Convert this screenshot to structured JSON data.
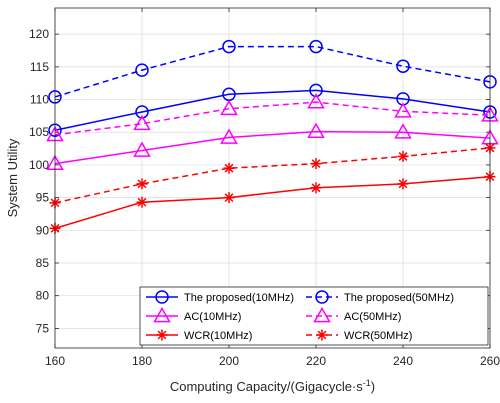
{
  "chart_data": {
    "type": "line",
    "title": "",
    "xlabel": "Computing Capacity/(Gigacycle·s",
    "xlabel_superscript": "-1",
    "xlabel_suffix": ")",
    "ylabel": "System Utility",
    "x": [
      160,
      180,
      200,
      220,
      240,
      260
    ],
    "xlim": [
      160,
      260
    ],
    "ylim": [
      72,
      124
    ],
    "xticks": [
      160,
      180,
      200,
      220,
      240,
      260
    ],
    "yticks": [
      75,
      80,
      85,
      90,
      95,
      100,
      105,
      110,
      115,
      120
    ],
    "grid": true,
    "legend_position": "bottom-right",
    "series": [
      {
        "name": "The proposed(10MHz)",
        "values": [
          105.3,
          108.1,
          110.8,
          111.4,
          110.1,
          108.1
        ],
        "color": "#0000ff",
        "dash": "solid",
        "marker": "circle"
      },
      {
        "name": "The proposed(50MHz)",
        "values": [
          110.4,
          114.5,
          118.1,
          118.1,
          115.1,
          112.7
        ],
        "color": "#0000ff",
        "dash": "dashed",
        "marker": "circle"
      },
      {
        "name": "AC(10MHz)",
        "values": [
          100.2,
          102.2,
          104.2,
          105.1,
          105.0,
          104.1
        ],
        "color": "#ff00ff",
        "dash": "solid",
        "marker": "triangle"
      },
      {
        "name": "AC(50MHz)",
        "values": [
          104.6,
          106.3,
          108.6,
          109.6,
          108.2,
          107.6
        ],
        "color": "#ff00ff",
        "dash": "dashed",
        "marker": "triangle"
      },
      {
        "name": "WCR(10MHz)",
        "values": [
          90.3,
          94.3,
          95.0,
          96.5,
          97.1,
          98.2
        ],
        "color": "#ff0000",
        "dash": "solid",
        "marker": "star"
      },
      {
        "name": "WCR(50MHz)",
        "values": [
          94.2,
          97.1,
          99.5,
          100.2,
          101.3,
          102.6
        ],
        "color": "#ff0000",
        "dash": "dashed",
        "marker": "star"
      }
    ]
  }
}
